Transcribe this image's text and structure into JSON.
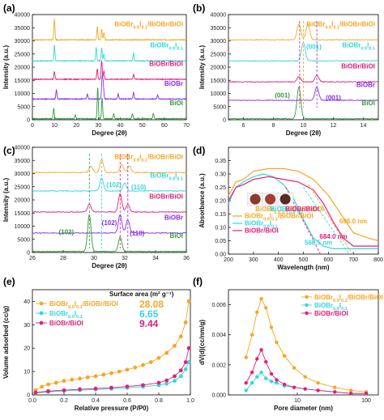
{
  "chart_data": [
    {
      "panel": "(a)",
      "type": "line",
      "xlabel": "Degree (2θ)",
      "ylabel": "Intensity (a.u.)",
      "xlim": [
        0,
        70
      ],
      "ylim": [
        0,
        40000
      ],
      "xticks": [
        "0",
        "10",
        "20",
        "30",
        "40",
        "50",
        "60",
        "70"
      ],
      "yticks": [
        "0",
        "5000",
        "10000",
        "15000",
        "20000",
        "25000",
        "30000",
        "35000",
        "40000"
      ],
      "series": [
        {
          "name": "BiOBr0.9I0.1/BiOBr/BiOI",
          "color": "#f5a623",
          "base": 30000,
          "peaks": [
            [
              10,
              8000
            ],
            [
              29.5,
              5000
            ],
            [
              31.5,
              4000
            ],
            [
              32.5,
              2500
            ]
          ]
        },
        {
          "name": "BiOBr0.9I0.1",
          "color": "#33d6e0",
          "base": 22000,
          "peaks": [
            [
              10,
              6000
            ],
            [
              29,
              5000
            ],
            [
              31.5,
              5000
            ],
            [
              32.5,
              2500
            ],
            [
              46,
              3000
            ]
          ]
        },
        {
          "name": "BiOBr/BiOI",
          "color": "#e0207a",
          "base": 15000,
          "peaks": [
            [
              10,
              3000
            ],
            [
              29.5,
              4000
            ],
            [
              31.5,
              7000
            ],
            [
              32.5,
              3000
            ],
            [
              46,
              2000
            ]
          ]
        },
        {
          "name": "BiOBr",
          "color": "#8a2be2",
          "base": 7500,
          "peaks": [
            [
              10.9,
              3500
            ],
            [
              25,
              2000
            ],
            [
              31.7,
              8000
            ],
            [
              32.2,
              6000
            ],
            [
              39,
              2000
            ],
            [
              46,
              2500
            ],
            [
              57,
              1500
            ]
          ]
        },
        {
          "name": "BiOI",
          "color": "#2e9c3a",
          "base": 0,
          "peaks": [
            [
              9.7,
              4000
            ],
            [
              19.5,
              1500
            ],
            [
              29.7,
              12000
            ],
            [
              31.7,
              8000
            ],
            [
              37,
              1800
            ],
            [
              45.5,
              2000
            ],
            [
              55,
              2000
            ]
          ]
        }
      ]
    },
    {
      "panel": "(b)",
      "type": "line",
      "xlabel": "Degree (2θ)",
      "ylabel": "Intensity (a.u.)",
      "xlim": [
        5,
        15
      ],
      "ylim": [
        0,
        40000
      ],
      "xticks": [
        "6",
        "8",
        "10",
        "12",
        "14"
      ],
      "yticks": [
        "0",
        "5000",
        "10000",
        "15000",
        "20000",
        "25000",
        "30000",
        "35000",
        "40000"
      ],
      "series": [
        {
          "name": "BiOBr0.9I0.1/BiOBr/BiOI",
          "color": "#f5a623",
          "base": 30000,
          "peaks": [
            [
              9.7,
              6000
            ],
            [
              10.3,
              6000
            ]
          ]
        },
        {
          "name": "BiOBr0.9I0.1",
          "color": "#33d6e0",
          "base": 22000,
          "peaks": [
            [
              10.0,
              7000
            ]
          ]
        },
        {
          "name": "BiOBr/BiOI",
          "color": "#e0207a",
          "base": 14000,
          "peaks": [
            [
              9.7,
              2000
            ],
            [
              10.9,
              2500
            ]
          ]
        },
        {
          "name": "BiOBr",
          "color": "#8a2be2",
          "base": 7000,
          "peaks": [
            [
              10.9,
              5000
            ]
          ]
        },
        {
          "name": "BiOI",
          "color": "#2e9c3a",
          "base": 0,
          "peaks": [
            [
              9.7,
              12000
            ]
          ]
        }
      ],
      "annotations": [
        "(001)",
        "(001)",
        "(001)"
      ]
    },
    {
      "panel": "(c)",
      "type": "line",
      "xlabel": "Degree (2θ)",
      "ylabel": "Intensity (a.u.)",
      "xlim": [
        26,
        36
      ],
      "ylim": [
        0,
        40000
      ],
      "xticks": [
        "26",
        "28",
        "30",
        "32",
        "34",
        "36"
      ],
      "yticks": [
        "0",
        "5000",
        "10000",
        "15000",
        "20000",
        "25000",
        "30000",
        "35000",
        "40000"
      ],
      "series": [
        {
          "name": "BiOBr0.9I0.1/BiOBr/BiOI",
          "color": "#f5a623",
          "base": 30000,
          "peaks": [
            [
              29.8,
              2500
            ],
            [
              30.5,
              5000
            ],
            [
              31.8,
              3000
            ],
            [
              32.3,
              2500
            ]
          ]
        },
        {
          "name": "BiOBr0.9I0.1",
          "color": "#33d6e0",
          "base": 23000,
          "peaks": [
            [
              30.5,
              5000
            ],
            [
              32,
              3000
            ]
          ]
        },
        {
          "name": "BiOBr/BiOI",
          "color": "#e0207a",
          "base": 15000,
          "peaks": [
            [
              29.7,
              3000
            ],
            [
              31.7,
              7000
            ],
            [
              32.2,
              3000
            ]
          ]
        },
        {
          "name": "BiOBr",
          "color": "#8a2be2",
          "base": 7000,
          "peaks": [
            [
              31.7,
              7000
            ],
            [
              32.2,
              5000
            ]
          ]
        },
        {
          "name": "BiOI",
          "color": "#2e9c3a",
          "base": 0,
          "peaks": [
            [
              29.7,
              14000
            ],
            [
              31.7,
              5500
            ]
          ]
        }
      ],
      "annotations": [
        "(102)",
        "(110)",
        "(102)",
        "(110)",
        "(102)"
      ]
    },
    {
      "panel": "(d)",
      "type": "line",
      "xlabel": "Wavelength (nm)",
      "ylabel": "Absorbance (a.u.)",
      "xlim": [
        200,
        800
      ],
      "ylim": [
        0,
        0.4
      ],
      "xticks": [
        "200",
        "300",
        "400",
        "500",
        "600",
        "700",
        "800"
      ],
      "yticks": [
        "0.00",
        "0.05",
        "0.10",
        "0.15",
        "0.20",
        "0.25",
        "0.30",
        "0.35"
      ],
      "series": [
        {
          "name": "BiOBr0.9I0.1/BiOBr/BiOI",
          "color": "#f5a623",
          "x": [
            200,
            230,
            260,
            300,
            360,
            420,
            480,
            540,
            600,
            650,
            700,
            760,
            800
          ],
          "y": [
            0.22,
            0.27,
            0.28,
            0.31,
            0.32,
            0.32,
            0.31,
            0.28,
            0.22,
            0.15,
            0.08,
            0.06,
            0.05
          ]
        },
        {
          "name": "BiOBr0.9I0.1",
          "color": "#33d6e0",
          "x": [
            200,
            230,
            260,
            300,
            340,
            380,
            420,
            460,
            500,
            540,
            580,
            620,
            700,
            800
          ],
          "y": [
            0.19,
            0.25,
            0.27,
            0.29,
            0.3,
            0.29,
            0.26,
            0.21,
            0.13,
            0.06,
            0.03,
            0.02,
            0.02,
            0.02
          ]
        },
        {
          "name": "BiOBr/BiOI",
          "color": "#e0207a",
          "x": [
            200,
            230,
            260,
            300,
            360,
            420,
            480,
            540,
            580,
            620,
            660,
            700,
            800
          ],
          "y": [
            0.2,
            0.25,
            0.26,
            0.28,
            0.29,
            0.28,
            0.27,
            0.24,
            0.19,
            0.12,
            0.06,
            0.03,
            0.03
          ]
        }
      ],
      "annotations": [
        "696.0 nm",
        "684.0 nm",
        "568.5 nm"
      ],
      "inset_labels": [
        "BiOBr0.9I0.1/BiOBr/BiOI",
        "BiOBr0.9I0.1",
        "BiOBr/BiOI"
      ]
    },
    {
      "panel": "(e)",
      "type": "scatter",
      "xlabel": "Relative pressure (P/P0)",
      "ylabel": "Volume adsorbed (cc/g)",
      "xlim": [
        0,
        1.0
      ],
      "ylim": [
        0,
        45
      ],
      "xticks": [
        "0.0",
        "0.2",
        "0.4",
        "0.6",
        "0.8",
        "1.0"
      ],
      "yticks": [
        "0",
        "10",
        "20",
        "30",
        "40"
      ],
      "surface_area_title": "Surface area (m² g⁻¹)",
      "series": [
        {
          "name": "BiOBr0.9I0.1/BiOBr/BiOI",
          "color": "#f5a623",
          "surface_area": "28.08",
          "x": [
            0.02,
            0.06,
            0.1,
            0.15,
            0.2,
            0.25,
            0.3,
            0.35,
            0.4,
            0.45,
            0.5,
            0.55,
            0.6,
            0.65,
            0.7,
            0.75,
            0.8,
            0.85,
            0.9,
            0.94,
            0.97,
            0.99
          ],
          "y": [
            2,
            3.5,
            4.5,
            5.2,
            6,
            6.5,
            7,
            7.5,
            8,
            8.7,
            9.3,
            10,
            10.8,
            11.7,
            12.8,
            14,
            15.8,
            18,
            21,
            25,
            31,
            40
          ]
        },
        {
          "name": "BiOBr0.9I0.1",
          "color": "#33d6e0",
          "surface_area": "6.65",
          "x": [
            0.02,
            0.1,
            0.2,
            0.3,
            0.4,
            0.5,
            0.6,
            0.7,
            0.8,
            0.85,
            0.9,
            0.94,
            0.97,
            0.99
          ],
          "y": [
            0.8,
            1.3,
            1.7,
            2,
            2.3,
            2.6,
            3,
            3.5,
            4.2,
            4.8,
            6,
            8,
            11,
            14
          ]
        },
        {
          "name": "BiOBr/BiOI",
          "color": "#e0207a",
          "surface_area": "9.44",
          "x": [
            0.02,
            0.1,
            0.2,
            0.3,
            0.4,
            0.5,
            0.6,
            0.7,
            0.8,
            0.85,
            0.9,
            0.94,
            0.97,
            0.99
          ],
          "y": [
            1,
            1.6,
            2,
            2.4,
            2.7,
            3.1,
            3.6,
            4.2,
            5.2,
            6.2,
            8,
            10.5,
            14,
            20
          ]
        }
      ]
    },
    {
      "panel": "(f)",
      "type": "line",
      "xlabel": "Pore diameter (nm)",
      "ylabel": "dV(d)(cc/nm/g)",
      "xlim": [
        1,
        150
      ],
      "ylim": [
        0,
        0.007
      ],
      "xscale": "log",
      "xticks": [
        "10",
        "100"
      ],
      "yticks": [
        "0.000",
        "0.002",
        "0.004",
        "0.006"
      ],
      "series": [
        {
          "name": "BiOBr0.9I0.1/BiOBr/BiOI",
          "color": "#f5a623",
          "x": [
            1.8,
            2.2,
            2.6,
            3.0,
            3.5,
            4.2,
            5,
            6.5,
            9,
            13,
            20,
            35,
            60,
            100
          ],
          "y": [
            0.0025,
            0.004,
            0.0055,
            0.0064,
            0.0058,
            0.0045,
            0.0035,
            0.0026,
            0.0018,
            0.0012,
            0.0008,
            0.0005,
            0.0003,
            0.0002
          ]
        },
        {
          "name": "BiOBr0.9I0.1",
          "color": "#33d6e0",
          "x": [
            1.8,
            2.2,
            2.6,
            3.0,
            3.5,
            4.2,
            5,
            6.5,
            9,
            13,
            20,
            35,
            60,
            100
          ],
          "y": [
            0.0003,
            0.0008,
            0.0012,
            0.0015,
            0.0011,
            0.0009,
            0.0008,
            0.0006,
            0.0005,
            0.0004,
            0.0003,
            0.0002,
            0.0001,
            0.0001
          ]
        },
        {
          "name": "BiOBr/BiOI",
          "color": "#e0207a",
          "x": [
            1.8,
            2.2,
            2.6,
            3.0,
            3.5,
            4.2,
            5,
            6.5,
            9,
            13,
            20,
            35,
            60,
            100
          ],
          "y": [
            0.0008,
            0.0015,
            0.0024,
            0.003,
            0.0022,
            0.0014,
            0.001,
            0.0007,
            0.0005,
            0.0004,
            0.0003,
            0.0002,
            0.0001,
            0.0001
          ]
        }
      ]
    }
  ]
}
